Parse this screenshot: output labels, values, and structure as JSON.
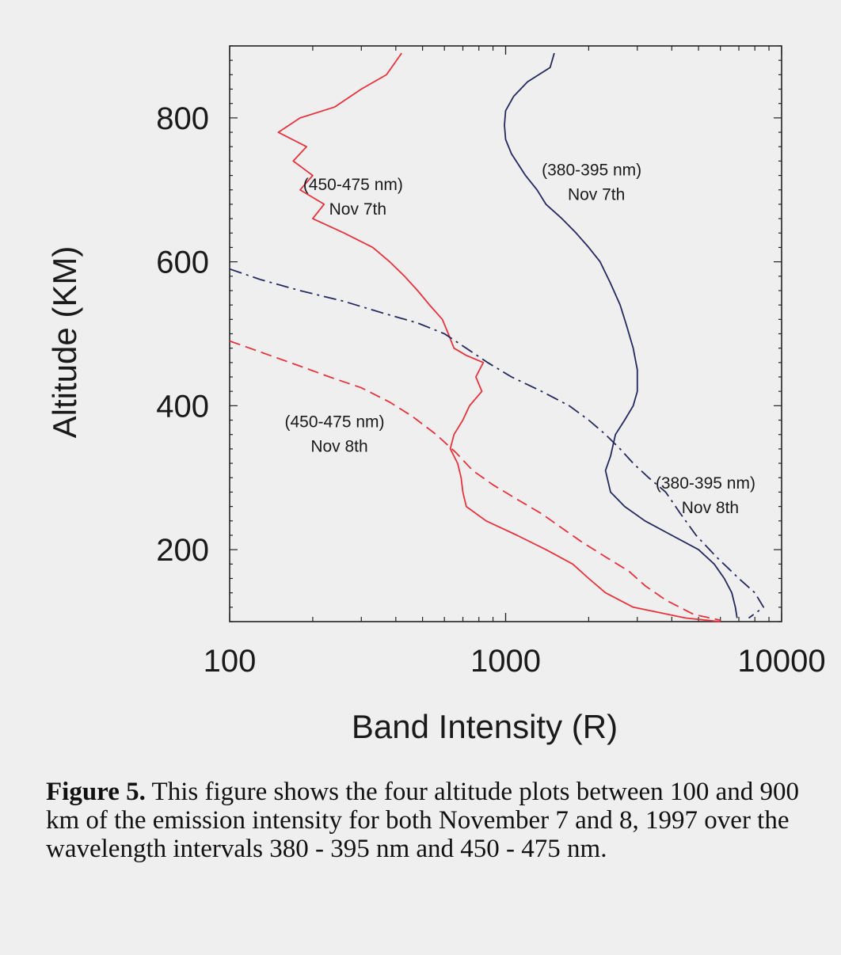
{
  "chart_data": {
    "type": "line",
    "title": "",
    "xlabel": "Band Intensity (R)",
    "ylabel": "Altitude (KM)",
    "xscale": "log",
    "xlim": [
      100,
      10000
    ],
    "ylim": [
      100,
      900
    ],
    "xticks": [
      "100",
      "1000",
      "10000"
    ],
    "yticks": [
      "200",
      "400",
      "600",
      "800"
    ],
    "grid": false,
    "colors": {
      "red": "#e8323c",
      "navy": "#23285e"
    },
    "series": [
      {
        "name": "(450-475 nm) Nov 7th",
        "color": "#e8323c",
        "style": "solid",
        "points": [
          [
            420,
            890
          ],
          [
            370,
            860
          ],
          [
            300,
            840
          ],
          [
            240,
            815
          ],
          [
            180,
            800
          ],
          [
            150,
            780
          ],
          [
            190,
            760
          ],
          [
            170,
            740
          ],
          [
            200,
            720
          ],
          [
            180,
            700
          ],
          [
            220,
            680
          ],
          [
            200,
            660
          ],
          [
            260,
            640
          ],
          [
            330,
            620
          ],
          [
            380,
            600
          ],
          [
            430,
            580
          ],
          [
            480,
            560
          ],
          [
            530,
            540
          ],
          [
            590,
            520
          ],
          [
            620,
            500
          ],
          [
            650,
            480
          ],
          [
            720,
            470
          ],
          [
            830,
            460
          ],
          [
            780,
            440
          ],
          [
            820,
            420
          ],
          [
            740,
            400
          ],
          [
            700,
            380
          ],
          [
            650,
            360
          ],
          [
            630,
            340
          ],
          [
            670,
            320
          ],
          [
            690,
            300
          ],
          [
            700,
            280
          ],
          [
            720,
            260
          ],
          [
            850,
            240
          ],
          [
            1100,
            220
          ],
          [
            1400,
            200
          ],
          [
            1750,
            180
          ],
          [
            2000,
            160
          ],
          [
            2300,
            140
          ],
          [
            2900,
            120
          ],
          [
            4500,
            105
          ],
          [
            6000,
            100
          ]
        ]
      },
      {
        "name": "(380-395 nm) Nov 7th",
        "color": "#23285e",
        "style": "solid",
        "points": [
          [
            1500,
            890
          ],
          [
            1450,
            870
          ],
          [
            1200,
            850
          ],
          [
            1070,
            830
          ],
          [
            1000,
            810
          ],
          [
            990,
            790
          ],
          [
            1000,
            770
          ],
          [
            1050,
            750
          ],
          [
            1180,
            720
          ],
          [
            1300,
            700
          ],
          [
            1400,
            680
          ],
          [
            1600,
            660
          ],
          [
            1800,
            640
          ],
          [
            2000,
            620
          ],
          [
            2200,
            600
          ],
          [
            2400,
            570
          ],
          [
            2600,
            540
          ],
          [
            2750,
            510
          ],
          [
            2900,
            480
          ],
          [
            3000,
            450
          ],
          [
            3000,
            420
          ],
          [
            2900,
            400
          ],
          [
            2700,
            380
          ],
          [
            2500,
            360
          ],
          [
            2400,
            330
          ],
          [
            2300,
            310
          ],
          [
            2400,
            280
          ],
          [
            2700,
            260
          ],
          [
            3200,
            240
          ],
          [
            4000,
            220
          ],
          [
            5000,
            200
          ],
          [
            5700,
            180
          ],
          [
            6200,
            160
          ],
          [
            6600,
            140
          ],
          [
            6800,
            120
          ],
          [
            6900,
            105
          ]
        ]
      },
      {
        "name": "(450-475 nm) Nov 8th",
        "color": "#e8323c",
        "style": "dashed",
        "points": [
          [
            100,
            490
          ],
          [
            140,
            470
          ],
          [
            180,
            455
          ],
          [
            230,
            440
          ],
          [
            300,
            425
          ],
          [
            380,
            405
          ],
          [
            460,
            385
          ],
          [
            560,
            360
          ],
          [
            660,
            335
          ],
          [
            760,
            310
          ],
          [
            900,
            290
          ],
          [
            1100,
            270
          ],
          [
            1350,
            250
          ],
          [
            1600,
            230
          ],
          [
            1900,
            210
          ],
          [
            2300,
            190
          ],
          [
            2800,
            170
          ],
          [
            3200,
            150
          ],
          [
            3800,
            130
          ],
          [
            4800,
            110
          ],
          [
            6000,
            102
          ]
        ]
      },
      {
        "name": "(380-395 nm) Nov 8th",
        "color": "#23285e",
        "style": "dashdot",
        "points": [
          [
            100,
            590
          ],
          [
            130,
            575
          ],
          [
            180,
            560
          ],
          [
            260,
            545
          ],
          [
            350,
            530
          ],
          [
            480,
            515
          ],
          [
            600,
            500
          ],
          [
            720,
            480
          ],
          [
            860,
            460
          ],
          [
            1050,
            440
          ],
          [
            1350,
            420
          ],
          [
            1700,
            400
          ],
          [
            2000,
            380
          ],
          [
            2300,
            360
          ],
          [
            2600,
            340
          ],
          [
            2900,
            320
          ],
          [
            3300,
            300
          ],
          [
            3800,
            280
          ],
          [
            4300,
            250
          ],
          [
            4900,
            220
          ],
          [
            5800,
            190
          ],
          [
            7000,
            160
          ],
          [
            8000,
            140
          ],
          [
            8600,
            120
          ],
          [
            7600,
            105
          ]
        ]
      }
    ],
    "annotations": [
      {
        "lines": [
          "(450-475 nm)",
          "Nov 7th"
        ],
        "x": 280,
        "y": 700
      },
      {
        "lines": [
          "(380-395 nm)",
          "Nov 7th"
        ],
        "x": 2050,
        "y": 720
      },
      {
        "lines": [
          "(450-475 nm)",
          "Nov 8th"
        ],
        "x": 240,
        "y": 370
      },
      {
        "lines": [
          "(380-395 nm)",
          "Nov 8th"
        ],
        "x": 5300,
        "y": 285
      }
    ]
  },
  "caption": {
    "label": "Figure 5.",
    "text": "This figure shows the four altitude plots between 100 and 900 km of the emission intensity for both November 7 and 8, 1997 over the wavelength intervals 380 - 395 nm and 450 - 475 nm."
  }
}
